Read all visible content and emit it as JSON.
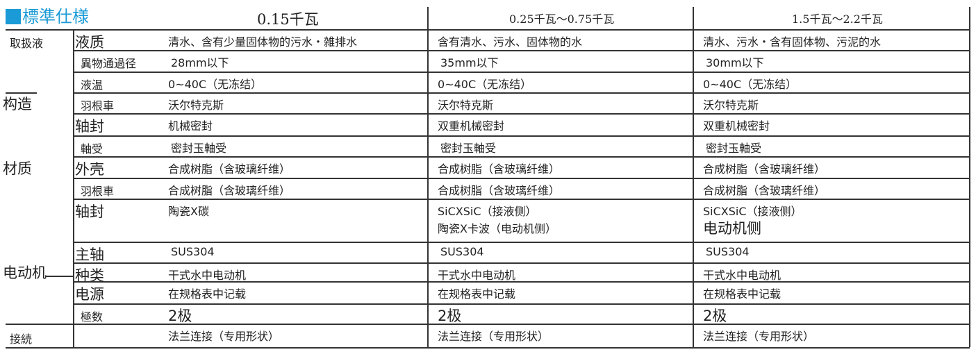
{
  "title": "標準仕様",
  "headers": [
    "0.15千瓦",
    "0.25千瓦～0.75千瓦",
    "1.5千瓦～2.2千瓦"
  ],
  "groups": [
    "取扱液",
    "构造",
    "材质",
    "电动机",
    "接続"
  ],
  "rows": [
    {
      "label": "液质",
      "values": [
        "清水、含有少量固体物的污水・雑排水",
        "含有清水、污水、固体物的水",
        "清水、污水・含有固体物、污泥的水"
      ]
    },
    {
      "label": "異物通過径",
      "values": [
        "28mm以下",
        "35mm以下",
        "30mm以下"
      ]
    },
    {
      "label": "液温",
      "values": [
        "0~40C（无冻结）",
        "0~40C（无冻结）",
        "0~40C（无冻结）"
      ]
    },
    {
      "label": "羽根車",
      "values": [
        "沃尔特克斯",
        "沃尔特克斯",
        "沃尔特克斯"
      ]
    },
    {
      "label": "轴封",
      "values": [
        "机械密封",
        "双重机械密封",
        "双重机械密封"
      ]
    },
    {
      "label": "軸受",
      "values": [
        "密封玉軸受",
        "密封玉軸受",
        "密封玉軸受"
      ]
    },
    {
      "label": "外壳",
      "values": [
        "合成树脂（含玻璃纤维）",
        "合成树脂（含玻璃纤维）",
        "合成树脂（含玻璃纤维）"
      ]
    },
    {
      "label": "羽根車",
      "values": [
        "合成树脂（含玻璃纤维）",
        "合成树脂（含玻璃纤维）",
        "合成树脂（含玻璃纤维）"
      ]
    },
    {
      "label": "轴封",
      "values": [
        "陶瓷X碳",
        "SiCXSiC（接液侧）",
        "SiCXSiC（接液侧）"
      ],
      "values2": [
        "",
        "陶瓷X卡波（电动机侧）",
        "电动机侧"
      ]
    },
    {
      "label": "主轴",
      "values": [
        "SUS304",
        "SUS304",
        "SUS304"
      ]
    },
    {
      "label": "种类",
      "values": [
        "干式水中电动机",
        "干式水中电动机",
        "干式水中电动机"
      ]
    },
    {
      "label": "电源",
      "values": [
        "在规格表中记载",
        "在规格表中记载",
        "在规格表中记载"
      ]
    },
    {
      "label": "極数",
      "values": [
        "2极",
        "2极",
        "2极"
      ]
    },
    {
      "label": "",
      "values": [
        "法兰连接（专用形状）",
        "法兰连接（专用形状）",
        "法兰连接（专用形状）"
      ]
    }
  ]
}
